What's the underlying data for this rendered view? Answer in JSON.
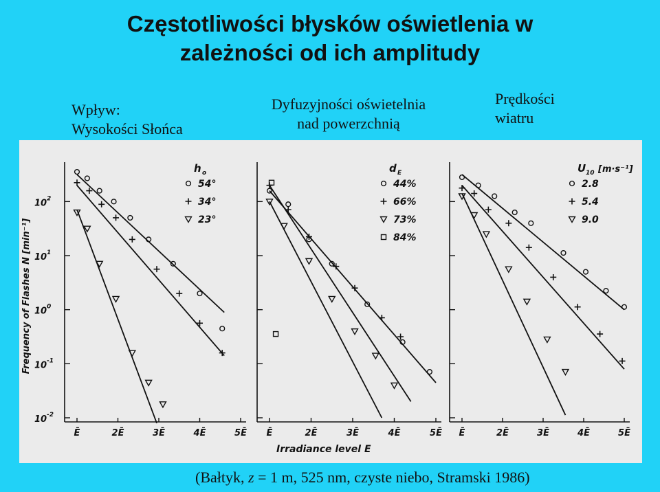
{
  "title_line1": "Częstotliwości błysków oświetlenia w",
  "title_line2": "zależności od ich amplitudy",
  "labels": {
    "influence": "Wpływ:",
    "sun": "Wysokości Słońca",
    "diffusion_line1": "Dyfuzyjności oświetelnia",
    "diffusion_line2": "nad powerzchnią",
    "wind_line1": "Prędkości",
    "wind_line2": "wiatru"
  },
  "caption": {
    "prefix": "(Bałtyk, ",
    "var": "z",
    "suffix": " = 1 m, 525 nm, czyste niebo, Stramski 1986)"
  },
  "colors": {
    "background": "#21d2f7",
    "scan": "#ebebeb",
    "ink": "#111111"
  },
  "chart_data": [
    {
      "type": "scatter",
      "title": "h0",
      "ylabel": "Frequency of Flashes N [min⁻¹]",
      "xlabel": "",
      "xlim": [
        1,
        5
      ],
      "ylim": [
        -2,
        2.5
      ],
      "x_ticks": [
        "Ē",
        "2Ē",
        "3Ē",
        "4Ē",
        "5Ē"
      ],
      "y_ticks": [
        {
          "base": "10",
          "exp": "2",
          "value": 2
        },
        {
          "base": "10",
          "exp": "1",
          "value": 1
        },
        {
          "base": "10",
          "exp": "0",
          "value": 0
        },
        {
          "base": "10",
          "exp": "-1",
          "value": -1
        },
        {
          "base": "10",
          "exp": "-2",
          "value": -2
        }
      ],
      "legend_title": "h",
      "legend_sub": "o",
      "series": [
        {
          "name": "54°",
          "marker": "circle",
          "points": [
            [
              1.0,
              2.55
            ],
            [
              1.25,
              2.43
            ],
            [
              1.55,
              2.2
            ],
            [
              1.9,
              2.0
            ],
            [
              2.3,
              1.7
            ],
            [
              2.75,
              1.3
            ],
            [
              3.35,
              0.85
            ],
            [
              4.0,
              0.3
            ],
            [
              4.55,
              -0.35
            ]
          ],
          "fit": [
            [
              1.0,
              2.5
            ],
            [
              4.6,
              -0.05
            ]
          ]
        },
        {
          "name": "34°",
          "marker": "plus",
          "points": [
            [
              1.0,
              2.35
            ],
            [
              1.3,
              2.2
            ],
            [
              1.6,
              1.95
            ],
            [
              1.95,
              1.7
            ],
            [
              2.35,
              1.3
            ],
            [
              2.95,
              0.75
            ],
            [
              3.5,
              0.3
            ],
            [
              4.0,
              -0.25
            ],
            [
              4.55,
              -0.8
            ]
          ],
          "fit": [
            [
              1.0,
              2.3
            ],
            [
              4.6,
              -0.85
            ]
          ]
        },
        {
          "name": "23°",
          "marker": "triangle",
          "points": [
            [
              1.0,
              1.8
            ],
            [
              1.25,
              1.5
            ],
            [
              1.55,
              0.85
            ],
            [
              1.95,
              0.2
            ],
            [
              2.35,
              -0.8
            ],
            [
              2.75,
              -1.35
            ],
            [
              3.1,
              -1.75
            ]
          ],
          "fit": [
            [
              1.0,
              1.85
            ],
            [
              2.95,
              -2.1
            ]
          ]
        }
      ]
    },
    {
      "type": "scatter",
      "title": "dE",
      "xlabel": "Irradiance level E",
      "xlim": [
        1,
        5
      ],
      "ylim": [
        -2,
        2.5
      ],
      "x_ticks": [
        "Ē",
        "2Ē",
        "3Ē",
        "4Ē",
        "5Ē"
      ],
      "legend_title": "d",
      "legend_sub": "E",
      "series": [
        {
          "name": "44%",
          "marker": "circle",
          "points": [
            [
              1.0,
              2.2
            ],
            [
              1.45,
              1.95
            ],
            [
              1.95,
              1.3
            ],
            [
              2.5,
              0.85
            ],
            [
              3.35,
              0.1
            ],
            [
              4.2,
              -0.6
            ],
            [
              4.85,
              -1.15
            ]
          ],
          "fit": [
            [
              1.0,
              2.2
            ],
            [
              5.0,
              -1.35
            ]
          ]
        },
        {
          "name": "66%",
          "marker": "plus",
          "points": [
            [
              1.0,
              2.3
            ],
            [
              1.45,
              1.85
            ],
            [
              1.95,
              1.35
            ],
            [
              2.6,
              0.8
            ],
            [
              3.05,
              0.4
            ],
            [
              3.7,
              -0.15
            ],
            [
              4.15,
              -0.5
            ]
          ],
          "fit": [
            [
              1.0,
              2.3
            ],
            [
              4.4,
              -1.7
            ]
          ]
        },
        {
          "name": "73%",
          "marker": "triangle",
          "points": [
            [
              1.0,
              2.0
            ],
            [
              1.35,
              1.55
            ],
            [
              1.95,
              0.9
            ],
            [
              2.5,
              0.2
            ],
            [
              3.05,
              -0.4
            ],
            [
              3.55,
              -0.85
            ],
            [
              4.0,
              -1.4
            ]
          ],
          "fit": [
            [
              1.0,
              2.0
            ],
            [
              3.7,
              -2.0
            ]
          ]
        },
        {
          "name": "84%",
          "marker": "square",
          "points": [
            [
              1.05,
              2.35
            ],
            [
              1.15,
              -0.45
            ]
          ],
          "fit": null
        }
      ]
    },
    {
      "type": "scatter",
      "title": "U10",
      "xlim": [
        1,
        5
      ],
      "ylim": [
        -2,
        2.5
      ],
      "x_ticks": [
        "Ē",
        "2Ē",
        "3Ē",
        "4Ē",
        "5Ē"
      ],
      "legend_title": "U",
      "legend_sub": "10",
      "legend_unit": "[m·s⁻¹]",
      "series": [
        {
          "name": "2.8",
          "marker": "circle",
          "points": [
            [
              1.0,
              2.45
            ],
            [
              1.4,
              2.3
            ],
            [
              1.8,
              2.1
            ],
            [
              2.3,
              1.8
            ],
            [
              2.7,
              1.6
            ],
            [
              3.5,
              1.05
            ],
            [
              4.05,
              0.7
            ],
            [
              4.55,
              0.35
            ],
            [
              5.0,
              0.05
            ]
          ],
          "fit": [
            [
              1.0,
              2.5
            ],
            [
              5.0,
              0.0
            ]
          ]
        },
        {
          "name": "5.4",
          "marker": "plus",
          "points": [
            [
              1.0,
              2.25
            ],
            [
              1.3,
              2.15
            ],
            [
              1.65,
              1.85
            ],
            [
              2.15,
              1.6
            ],
            [
              2.65,
              1.15
            ],
            [
              3.25,
              0.6
            ],
            [
              3.85,
              0.05
            ],
            [
              4.4,
              -0.45
            ],
            [
              4.95,
              -0.95
            ]
          ],
          "fit": [
            [
              1.0,
              2.3
            ],
            [
              5.0,
              -1.1
            ]
          ]
        },
        {
          "name": "9.0",
          "marker": "triangle",
          "points": [
            [
              1.0,
              2.1
            ],
            [
              1.3,
              1.75
            ],
            [
              1.6,
              1.4
            ],
            [
              2.15,
              0.75
            ],
            [
              2.6,
              0.15
            ],
            [
              3.1,
              -0.55
            ],
            [
              3.55,
              -1.15
            ]
          ],
          "fit": [
            [
              1.0,
              2.15
            ],
            [
              3.55,
              -1.95
            ]
          ]
        }
      ]
    }
  ]
}
